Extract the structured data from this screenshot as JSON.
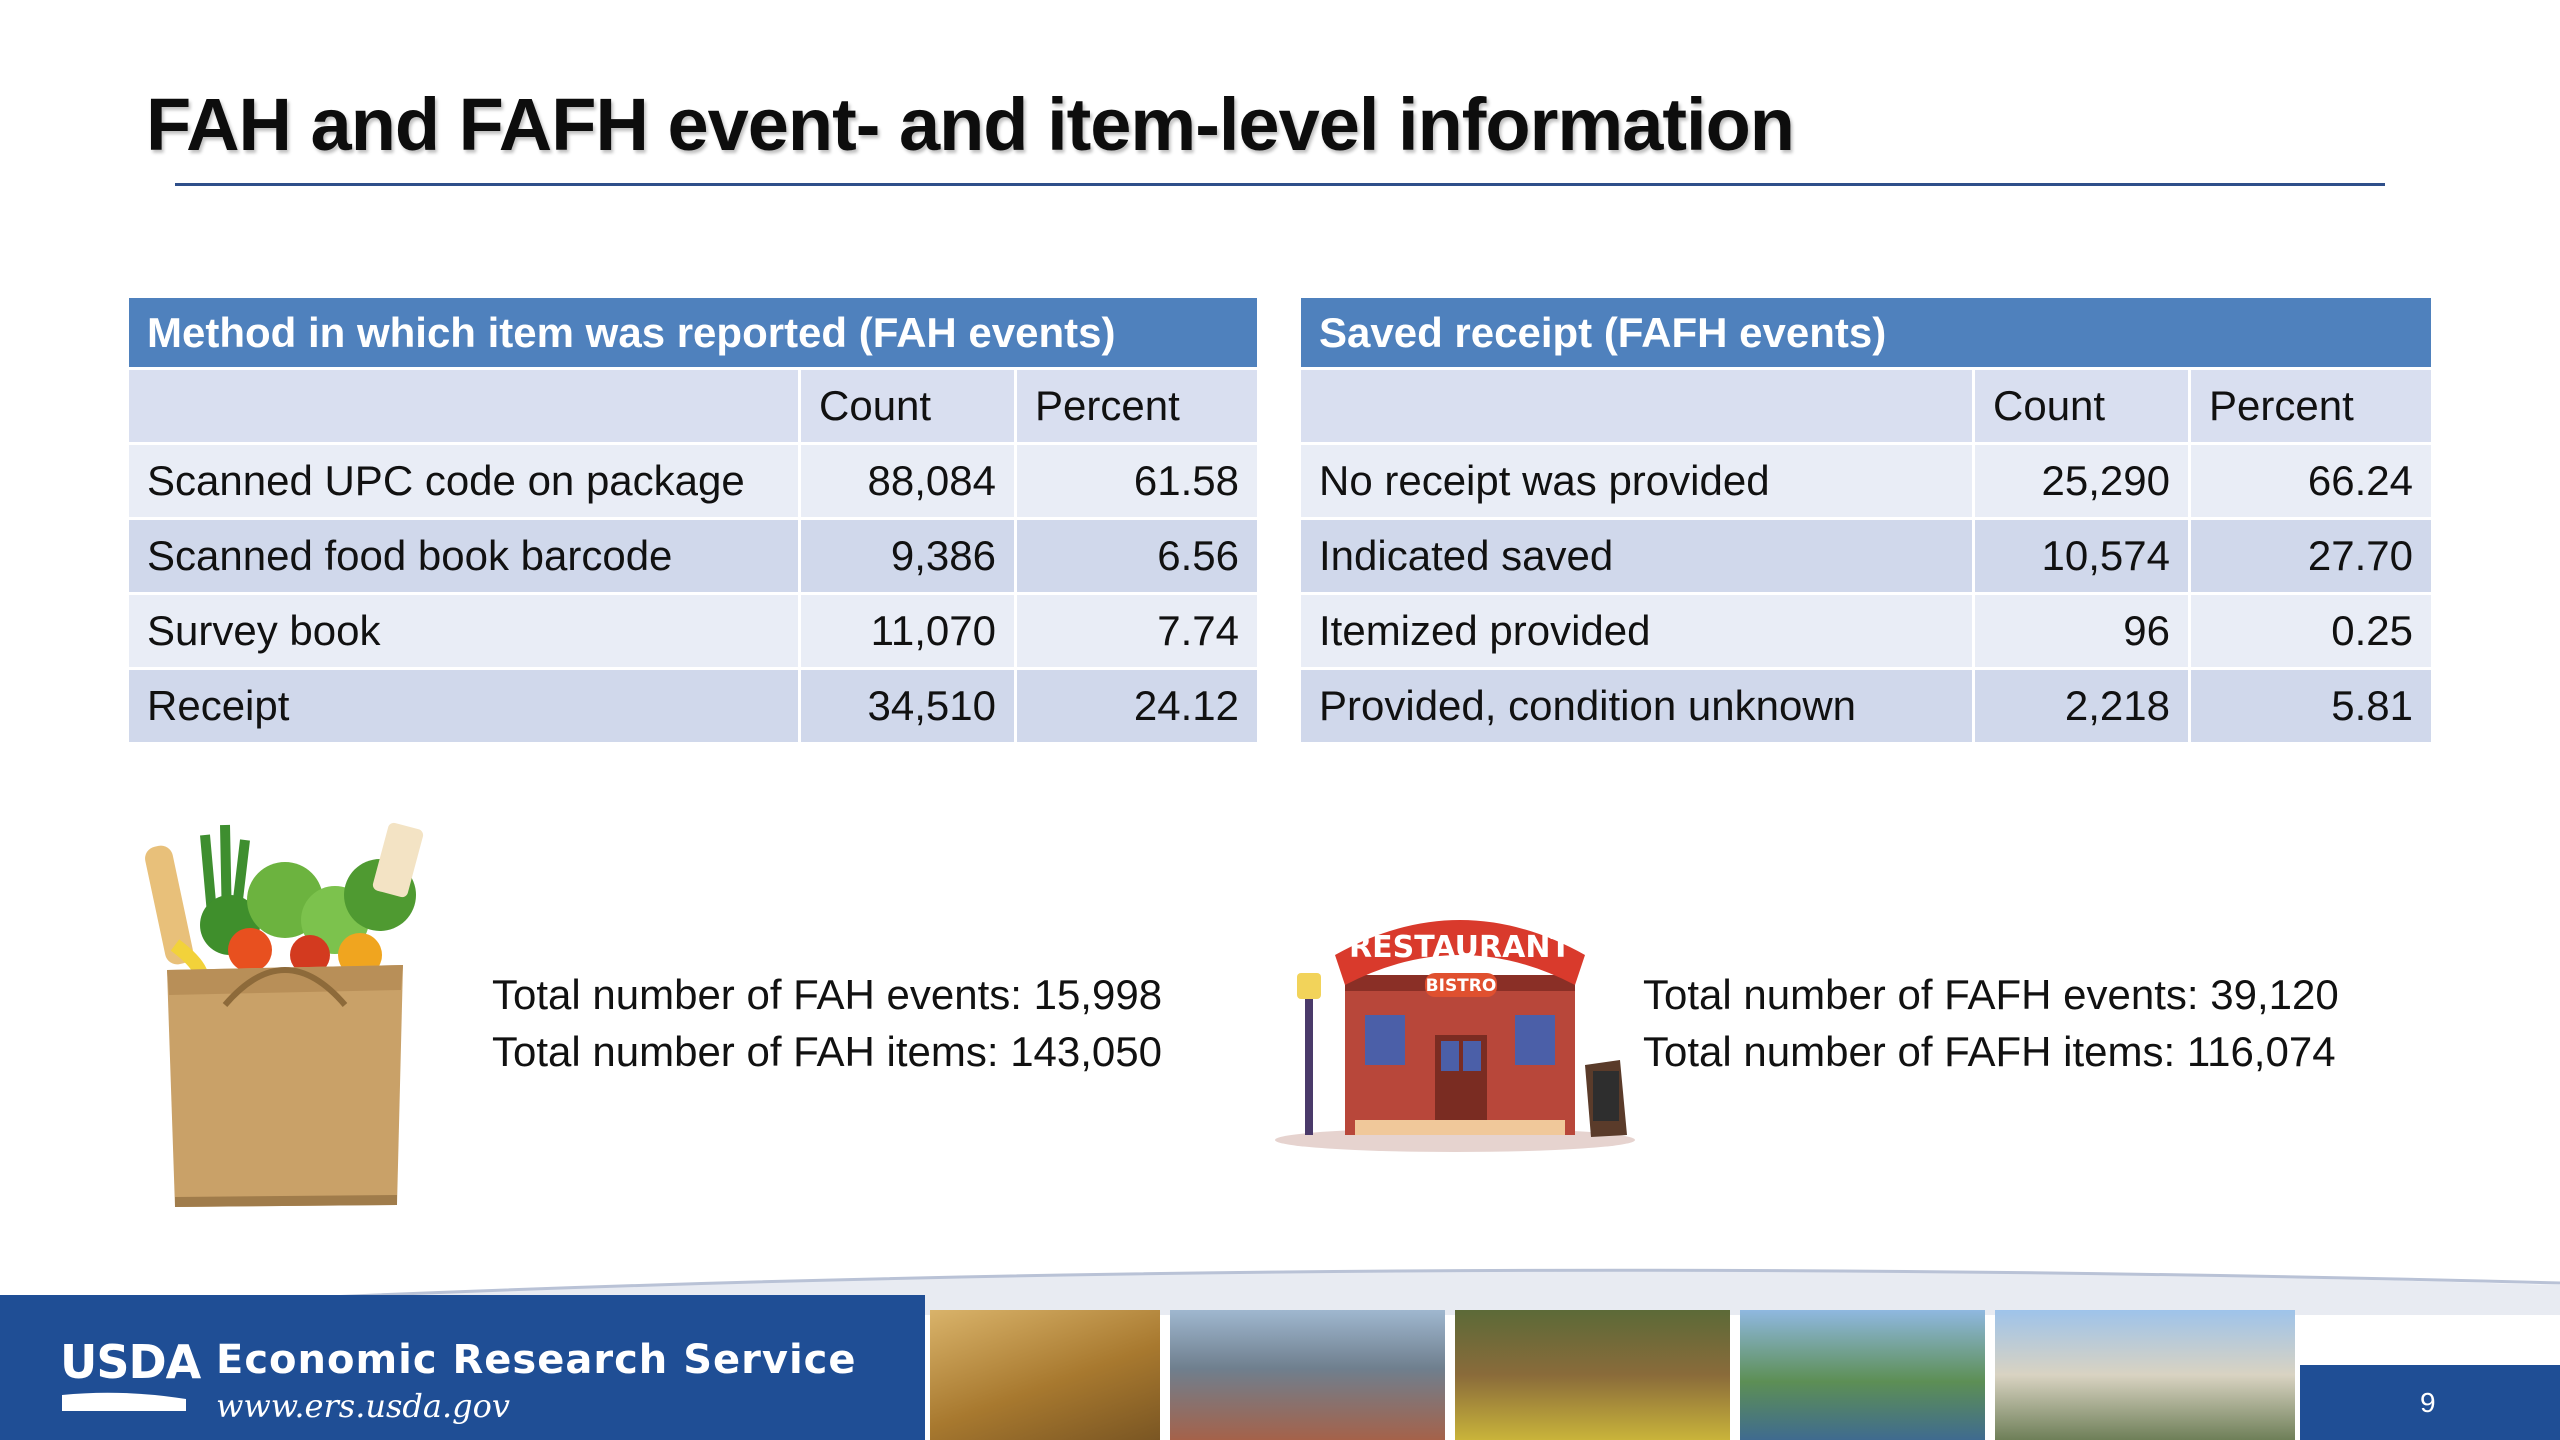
{
  "slide": {
    "title": "FAH and FAFH event- and item-level information",
    "page_number": "9"
  },
  "fah_table": {
    "caption": "Method in which item was reported (FAH events)",
    "columns": [
      "",
      "Count",
      "Percent"
    ],
    "rows": [
      {
        "label": "Scanned UPC code on package",
        "count": "88,084",
        "percent": "61.58"
      },
      {
        "label": "Scanned food book barcode",
        "count": "9,386",
        "percent": "6.56"
      },
      {
        "label": "Survey book",
        "count": "11,070",
        "percent": "7.74"
      },
      {
        "label": "Receipt",
        "count": "34,510",
        "percent": "24.12"
      }
    ]
  },
  "fafh_table": {
    "caption": "Saved receipt (FAFH events)",
    "columns": [
      "",
      "Count",
      "Percent"
    ],
    "rows": [
      {
        "label": "No receipt was provided",
        "count": "25,290",
        "percent": "66.24"
      },
      {
        "label": "Indicated saved",
        "count": "10,574",
        "percent": "27.70"
      },
      {
        "label": "Itemized provided",
        "count": "96",
        "percent": "0.25"
      },
      {
        "label": "Provided, condition unknown",
        "count": "2,218",
        "percent": "5.81"
      }
    ]
  },
  "fah_totals": {
    "events": "Total number of FAH events: 15,998",
    "items": "Total number of FAH items: 143,050"
  },
  "fafh_totals": {
    "events": "Total number of FAFH events: 39,120",
    "items": "Total number of FAFH items: 116,074"
  },
  "restaurant_sign": {
    "main": "RESTAURANT",
    "sub": "BISTRO"
  },
  "footer": {
    "logo": "USDA",
    "agency": "Economic Research Service",
    "url": "www.ers.usda.gov"
  },
  "colors": {
    "table_header": "#4f81bd",
    "row_light": "#e9edf6",
    "row_dark": "#d0d8eb",
    "footer_blue": "#1f4e95"
  }
}
